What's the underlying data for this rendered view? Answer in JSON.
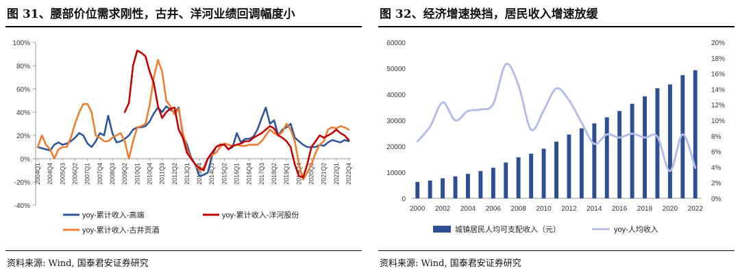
{
  "left": {
    "title": "图 31、腰部价位需求刚性，古井、洋河业绩回调幅度小",
    "source": "资料来源: Wind, 国泰君安证券研究",
    "chart_data": {
      "type": "line",
      "title": "图 31、腰部价位需求刚性，古井、洋河业绩回调幅度小",
      "categories": [
        "2004Q1",
        "2004Q2",
        "2004Q3",
        "2004Q4",
        "2005Q1",
        "2005Q2",
        "2005Q3",
        "2005Q4",
        "2006Q1",
        "2006Q2",
        "2006Q3",
        "2006Q4",
        "2007Q1",
        "2007Q2",
        "2007Q3",
        "2007Q4",
        "2008Q1",
        "2008Q2",
        "2008Q3",
        "2008Q4",
        "2009Q1",
        "2009Q2",
        "2009Q3",
        "2009Q4",
        "2010Q1",
        "2010Q2",
        "2010Q3",
        "2010Q4",
        "2011Q1",
        "2011Q2",
        "2011Q3",
        "2011Q4",
        "2012Q1",
        "2012Q2",
        "2012Q3",
        "2012Q4",
        "2013Q1",
        "2013Q2",
        "2013Q3",
        "2013Q4",
        "2014Q1",
        "2014Q2",
        "2014Q3",
        "2014Q4",
        "2015Q1",
        "2015Q2",
        "2015Q3",
        "2015Q4",
        "2016Q1",
        "2016Q2",
        "2016Q3",
        "2016Q4",
        "2017Q1",
        "2017Q2",
        "2017Q3",
        "2017Q4",
        "2018Q1",
        "2018Q2",
        "2018Q3",
        "2018Q4",
        "2019Q1",
        "2019Q2",
        "2019Q3",
        "2019Q4",
        "2020Q1",
        "2020Q2",
        "2020Q3",
        "2020Q4",
        "2021Q1",
        "2021Q2",
        "2021Q3",
        "2021Q4",
        "2022Q1",
        "2022Q2",
        "2022Q3",
        "2022Q4"
      ],
      "tick_labels": [
        "2004Q1",
        "2004Q4",
        "2005Q3",
        "2006Q2",
        "2007Q1",
        "2007Q4",
        "2008Q3",
        "2009Q2",
        "2010Q1",
        "2010Q4",
        "2011Q3",
        "2012Q2",
        "2013Q1",
        "2013Q4",
        "2014Q3",
        "2015Q2",
        "2016Q1",
        "2016Q4",
        "2017Q3",
        "2018Q2",
        "2019Q1",
        "2019Q4",
        "2020Q3",
        "2021Q2",
        "2022Q1",
        "2022Q4"
      ],
      "ylim": [
        -40,
        100
      ],
      "yticks": [
        "100%",
        "80%",
        "60%",
        "40%",
        "20%",
        "0%",
        "-20%",
        "-40%"
      ],
      "series": [
        {
          "name": "yoy-累计收入-高端",
          "color": "#2e5597",
          "values": [
            10,
            9,
            8,
            7,
            12,
            14,
            12,
            13,
            15,
            18,
            22,
            20,
            13,
            10,
            15,
            22,
            20,
            37,
            22,
            14,
            15,
            17,
            20,
            25,
            27,
            27,
            28,
            32,
            39,
            44,
            40,
            45,
            42,
            40,
            44,
            20,
            12,
            1,
            -5,
            -15,
            -14,
            -12,
            2,
            10,
            12,
            12,
            8,
            10,
            22,
            14,
            17,
            17,
            19,
            25,
            35,
            44,
            30,
            33,
            20,
            25,
            27,
            30,
            18,
            15,
            12,
            10,
            10,
            10,
            12,
            11,
            14,
            16,
            15,
            14,
            16,
            15
          ]
        },
        {
          "name": "yoy-累计收入-洋河股份",
          "color": "#c00000",
          "values": [
            null,
            null,
            null,
            null,
            null,
            null,
            null,
            null,
            null,
            null,
            null,
            null,
            null,
            null,
            null,
            null,
            null,
            null,
            null,
            null,
            null,
            40,
            48,
            80,
            93,
            91,
            88,
            75,
            65,
            45,
            35,
            40,
            43,
            44,
            25,
            18,
            5,
            0,
            -5,
            -8,
            -10,
            0,
            5,
            10,
            12,
            12,
            8,
            11,
            12,
            13,
            15,
            15,
            18,
            20,
            22,
            25,
            28,
            26,
            20,
            18,
            15,
            10,
            -5,
            -15,
            -16,
            -5,
            10,
            15,
            20,
            18,
            20,
            22,
            25,
            22,
            20,
            16
          ]
        },
        {
          "name": "yoy-累计收入-古井贡酒",
          "color": "#ed7d31",
          "values": [
            10,
            20,
            12,
            8,
            0,
            8,
            10,
            10,
            18,
            30,
            40,
            47,
            47,
            40,
            20,
            18,
            15,
            15,
            18,
            20,
            22,
            15,
            0,
            15,
            27,
            28,
            30,
            46,
            70,
            85,
            75,
            50,
            45,
            38,
            43,
            22,
            8,
            0,
            -5,
            -10,
            -8,
            0,
            3,
            5,
            10,
            13,
            12,
            11,
            12,
            11,
            11,
            12,
            12,
            12,
            15,
            20,
            25,
            22,
            20,
            23,
            30,
            25,
            15,
            -5,
            -18,
            -12,
            -5,
            5,
            12,
            15,
            25,
            27,
            26,
            28,
            27,
            25
          ]
        }
      ]
    }
  },
  "right": {
    "title": "图 32、经济增速换挡，居民收入增速放缓",
    "source": "资料来源: Wind, 国泰君安证券研究",
    "chart_data": {
      "type": "bar",
      "title": "图 32、经济增速换挡，居民收入增速放缓",
      "x": [
        2000,
        2001,
        2002,
        2003,
        2004,
        2005,
        2006,
        2007,
        2008,
        2009,
        2010,
        2011,
        2012,
        2013,
        2014,
        2015,
        2016,
        2017,
        2018,
        2019,
        2020,
        2021,
        2022
      ],
      "xtick_labels": [
        "2000",
        "2002",
        "2004",
        "2006",
        "2008",
        "2010",
        "2012",
        "2014",
        "2016",
        "2018",
        "2020",
        "2022"
      ],
      "ylim": [
        0,
        60000
      ],
      "yticks": [
        "60000",
        "50000",
        "40000",
        "30000",
        "20000",
        "10000",
        "0"
      ],
      "y2lim": [
        0,
        20
      ],
      "y2ticks": [
        "20%",
        "18%",
        "16%",
        "14%",
        "12%",
        "10%",
        "8%",
        "6%",
        "4%",
        "2%",
        "0%"
      ],
      "series": [
        {
          "name": "城镇居民人均可支配收入（元）",
          "type": "bar",
          "axis": "left",
          "color": "#2e4f94",
          "values": [
            6280,
            6860,
            7703,
            8472,
            9422,
            10493,
            11759,
            13786,
            15781,
            17175,
            19109,
            21810,
            24565,
            26955,
            28844,
            31195,
            33616,
            36396,
            39251,
            42359,
            43834,
            47412,
            49283
          ]
        },
        {
          "name": "yoy-人均收入",
          "type": "line",
          "axis": "right",
          "color": "#b4bde6",
          "values": [
            7.3,
            9.2,
            12.3,
            10.0,
            11.2,
            11.4,
            12.1,
            17.2,
            14.5,
            8.8,
            11.3,
            14.1,
            12.6,
            9.7,
            7.0,
            8.2,
            7.8,
            8.3,
            7.8,
            7.9,
            3.5,
            8.2,
            3.9
          ]
        }
      ]
    }
  }
}
